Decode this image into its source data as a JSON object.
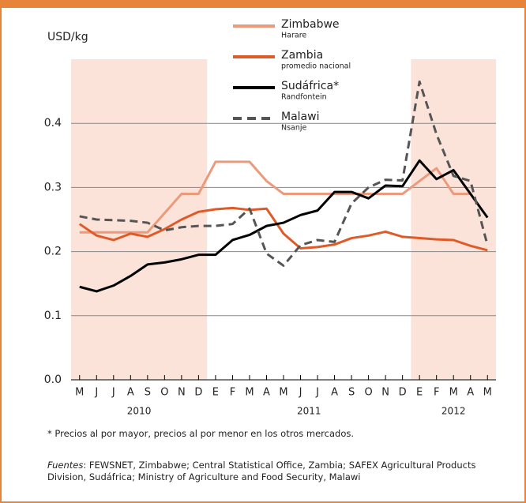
{
  "chart_data": {
    "type": "line",
    "y_label": "USD/kg",
    "categories": [
      "M",
      "J",
      "J",
      "A",
      "S",
      "O",
      "N",
      "D",
      "E",
      "F",
      "M",
      "A",
      "M",
      "J",
      "J",
      "A",
      "S",
      "O",
      "N",
      "D",
      "E",
      "F",
      "M",
      "A",
      "M"
    ],
    "year_groups": [
      {
        "label": "2010",
        "span": 8,
        "shaded": true
      },
      {
        "label": "2011",
        "span": 12,
        "shaded": false
      },
      {
        "label": "2012",
        "span": 5,
        "shaded": true
      }
    ],
    "ylim": [
      0,
      0.5
    ],
    "yticks": [
      {
        "value": 0,
        "label": "0.0"
      },
      0.1,
      0.2,
      0.3,
      0.4
    ],
    "grid": true,
    "series": [
      {
        "name": "Zimbabwe",
        "location": "Harare",
        "color": "#eb9a7c",
        "dashed": false,
        "values": [
          0.23,
          0.23,
          0.23,
          0.23,
          0.23,
          0.26,
          0.29,
          0.29,
          0.34,
          0.34,
          0.34,
          0.31,
          0.29,
          0.29,
          0.29,
          0.29,
          0.29,
          0.29,
          0.29,
          0.29,
          0.31,
          0.33,
          0.29,
          0.29,
          null
        ]
      },
      {
        "name": "Zambia",
        "location": "promedio nacional",
        "color": "#e05a28",
        "dashed": false,
        "values": [
          0.243,
          0.225,
          0.218,
          0.228,
          0.223,
          0.235,
          0.25,
          0.262,
          0.266,
          0.268,
          0.265,
          0.267,
          0.228,
          0.205,
          0.207,
          0.211,
          0.221,
          0.225,
          0.231,
          0.223,
          0.221,
          0.219,
          0.218,
          0.209,
          0.202
        ]
      },
      {
        "name": "Sudáfrica*",
        "location": "Randfontein",
        "color": "#000000",
        "dashed": false,
        "values": [
          0.145,
          0.138,
          0.147,
          0.162,
          0.18,
          0.183,
          0.188,
          0.195,
          0.195,
          0.218,
          0.226,
          0.24,
          0.245,
          0.257,
          0.264,
          0.293,
          0.293,
          0.283,
          0.303,
          0.302,
          0.342,
          0.313,
          0.327,
          0.29,
          0.253
        ]
      },
      {
        "name": "Malawi",
        "location": "Nsanje",
        "color": "#555555",
        "dashed": true,
        "values": [
          0.255,
          0.25,
          0.249,
          0.248,
          0.245,
          0.233,
          0.238,
          0.24,
          0.24,
          0.243,
          0.267,
          0.197,
          0.178,
          0.21,
          0.218,
          0.215,
          0.275,
          0.3,
          0.312,
          0.311,
          0.465,
          0.383,
          0.318,
          0.31,
          0.21
        ]
      }
    ],
    "footnote": "* Precios al por mayor,  precios al por menor en los otros mercados.",
    "sources_label": "Fuentes",
    "sources_text": ": FEWSNET, Zimbabwe; Central Statistical Office, Zambia; SAFEX Agricultural Products Division, Sudáfrica; Ministry of Agriculture and Food Security, Malawi"
  }
}
